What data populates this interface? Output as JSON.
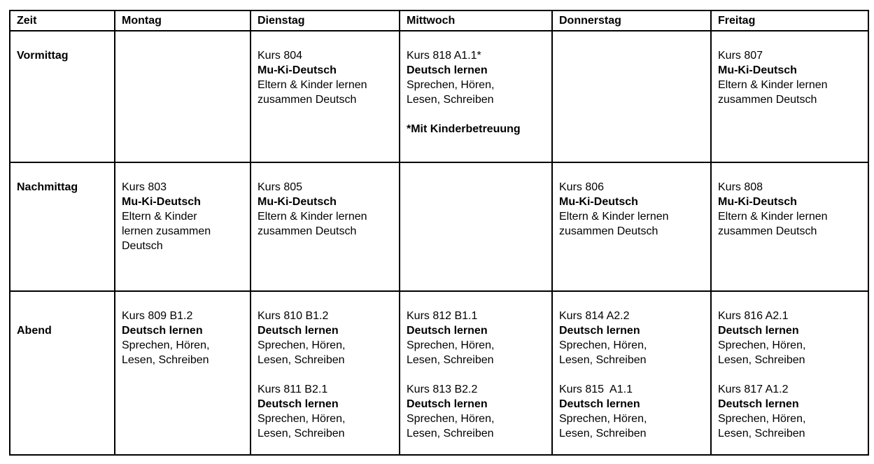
{
  "colors": {
    "background": "#ffffff",
    "border": "#000000",
    "text": "#000000"
  },
  "table": {
    "headers": [
      "Zeit",
      "Montag",
      "Dienstag",
      "Mittwoch",
      "Donnerstag",
      "Freitag"
    ],
    "rows": [
      {
        "name": "Vormittag",
        "label": [
          {
            "text": "Vormittag",
            "bold": true
          }
        ],
        "cells": [
          [],
          [
            {
              "text": "Kurs 804",
              "bold": false
            },
            {
              "text": "Mu-Ki-Deutsch",
              "bold": true
            },
            {
              "text": "Eltern & Kinder lernen",
              "bold": false
            },
            {
              "text": "zusammen Deutsch",
              "bold": false
            }
          ],
          [
            {
              "text": "Kurs 818 A1.1*",
              "bold": false
            },
            {
              "text": "Deutsch lernen",
              "bold": true
            },
            {
              "text": "Sprechen, Hören,",
              "bold": false
            },
            {
              "text": "Lesen, Schreiben",
              "bold": false
            },
            {
              "text": "",
              "bold": false
            },
            {
              "text": "*Mit Kinderbetreuung",
              "bold": true
            }
          ],
          [],
          [
            {
              "text": "Kurs 807",
              "bold": false
            },
            {
              "text": "Mu-Ki-Deutsch",
              "bold": true
            },
            {
              "text": "Eltern & Kinder lernen",
              "bold": false
            },
            {
              "text": "zusammen Deutsch",
              "bold": false
            }
          ]
        ]
      },
      {
        "name": "Nachmittag",
        "label": [
          {
            "text": "Nachmittag",
            "bold": true
          }
        ],
        "cells": [
          [
            {
              "text": "Kurs 803",
              "bold": false
            },
            {
              "text": "Mu-Ki-Deutsch",
              "bold": true
            },
            {
              "text": "Eltern & Kinder",
              "bold": false
            },
            {
              "text": "lernen zusammen",
              "bold": false
            },
            {
              "text": "Deutsch",
              "bold": false
            }
          ],
          [
            {
              "text": "Kurs 805",
              "bold": false
            },
            {
              "text": "Mu-Ki-Deutsch",
              "bold": true
            },
            {
              "text": "Eltern & Kinder lernen",
              "bold": false
            },
            {
              "text": "zusammen Deutsch",
              "bold": false
            }
          ],
          [],
          [
            {
              "text": "Kurs 806",
              "bold": false
            },
            {
              "text": "Mu-Ki-Deutsch",
              "bold": true
            },
            {
              "text": "Eltern & Kinder lernen",
              "bold": false
            },
            {
              "text": "zusammen Deutsch",
              "bold": false
            }
          ],
          [
            {
              "text": "Kurs 808",
              "bold": false
            },
            {
              "text": "Mu-Ki-Deutsch",
              "bold": true
            },
            {
              "text": "Eltern & Kinder lernen",
              "bold": false
            },
            {
              "text": "zusammen Deutsch",
              "bold": false
            }
          ]
        ]
      },
      {
        "name": "Abend",
        "label": [
          {
            "text": "",
            "bold": true
          },
          {
            "text": "Abend",
            "bold": true
          }
        ],
        "cells": [
          [
            {
              "text": "Kurs 809 B1.2",
              "bold": false
            },
            {
              "text": "Deutsch lernen",
              "bold": true
            },
            {
              "text": "Sprechen, Hören,",
              "bold": false
            },
            {
              "text": "Lesen, Schreiben",
              "bold": false
            }
          ],
          [
            {
              "text": "Kurs 810 B1.2",
              "bold": false
            },
            {
              "text": "Deutsch lernen",
              "bold": true
            },
            {
              "text": "Sprechen, Hören,",
              "bold": false
            },
            {
              "text": "Lesen, Schreiben",
              "bold": false
            },
            {
              "text": "",
              "bold": false
            },
            {
              "text": "Kurs 811 B2.1",
              "bold": false
            },
            {
              "text": "Deutsch lernen",
              "bold": true
            },
            {
              "text": "Sprechen, Hören,",
              "bold": false
            },
            {
              "text": "Lesen, Schreiben",
              "bold": false
            }
          ],
          [
            {
              "text": "Kurs 812 B1.1",
              "bold": false
            },
            {
              "text": "Deutsch lernen",
              "bold": true
            },
            {
              "text": "Sprechen, Hören,",
              "bold": false
            },
            {
              "text": "Lesen, Schreiben",
              "bold": false
            },
            {
              "text": "",
              "bold": false
            },
            {
              "text": "Kurs 813 B2.2",
              "bold": false
            },
            {
              "text": "Deutsch lernen",
              "bold": true
            },
            {
              "text": "Sprechen, Hören,",
              "bold": false
            },
            {
              "text": "Lesen, Schreiben",
              "bold": false
            }
          ],
          [
            {
              "text": "Kurs 814 A2.2",
              "bold": false
            },
            {
              "text": "Deutsch lernen",
              "bold": true
            },
            {
              "text": "Sprechen, Hören,",
              "bold": false
            },
            {
              "text": "Lesen, Schreiben",
              "bold": false
            },
            {
              "text": "",
              "bold": false
            },
            {
              "text": "Kurs 815  A1.1",
              "bold": false
            },
            {
              "text": "Deutsch lernen",
              "bold": true
            },
            {
              "text": "Sprechen, Hören,",
              "bold": false
            },
            {
              "text": "Lesen, Schreiben",
              "bold": false
            }
          ],
          [
            {
              "text": "Kurs 816 A2.1",
              "bold": false
            },
            {
              "text": "Deutsch lernen",
              "bold": true
            },
            {
              "text": "Sprechen, Hören,",
              "bold": false
            },
            {
              "text": "Lesen, Schreiben",
              "bold": false
            },
            {
              "text": "",
              "bold": false
            },
            {
              "text": "Kurs 817 A1.2",
              "bold": false
            },
            {
              "text": "Deutsch lernen",
              "bold": true
            },
            {
              "text": "Sprechen, Hören,",
              "bold": false
            },
            {
              "text": "Lesen, Schreiben",
              "bold": false
            }
          ]
        ]
      }
    ]
  }
}
